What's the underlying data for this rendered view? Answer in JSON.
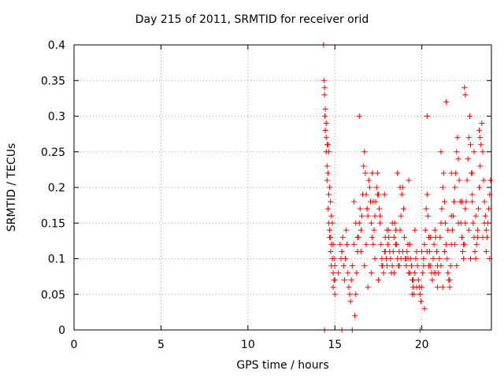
{
  "chart_data": {
    "type": "scatter",
    "title": "Day 215 of 2011, SRMTID for receiver orid",
    "xlabel": "GPS time / hours",
    "ylabel": "SRMTID / TECUs",
    "xlim": [
      0,
      24
    ],
    "ylim": [
      0,
      0.4
    ],
    "xticks": [
      0,
      5,
      10,
      15,
      20
    ],
    "yticks": [
      0,
      0.05,
      0.1,
      0.15,
      0.2,
      0.25,
      0.3,
      0.35,
      0.4
    ],
    "xtick_labels": [
      "0",
      "5",
      "10",
      "15",
      "20"
    ],
    "ytick_labels": [
      "0",
      "0.05",
      "0.1",
      "0.15",
      "0.2",
      "0.25",
      "0.3",
      "0.35",
      "0.4"
    ],
    "grid": true,
    "marker": "plus",
    "color": "#ff0000",
    "x": [
      14.35,
      14.38,
      14.4,
      14.45,
      14.5,
      14.55,
      14.6,
      14.65,
      14.7,
      14.75,
      14.8,
      14.85,
      14.9,
      14.95,
      15.0,
      14.4,
      14.42,
      14.45,
      14.5,
      14.55,
      14.6,
      14.65,
      14.7,
      14.75,
      14.8,
      14.85,
      14.9,
      14.95,
      15.0,
      14.45,
      14.5,
      14.55,
      14.6,
      14.65,
      14.7,
      14.75,
      14.8,
      14.9,
      15.0,
      15.2,
      15.3,
      15.35,
      15.4,
      15.45,
      15.5,
      15.55,
      15.6,
      15.65,
      15.7,
      15.75,
      15.8,
      15.85,
      15.9,
      15.95,
      16.0,
      16.1,
      16.15,
      16.2,
      16.25,
      16.3,
      16.35,
      16.4,
      16.45,
      16.5,
      16.55,
      16.6,
      16.65,
      16.7,
      16.75,
      16.8,
      16.85,
      16.9,
      16.95,
      17.0,
      17.05,
      17.1,
      17.15,
      17.2,
      17.25,
      17.3,
      17.35,
      17.4,
      17.45,
      17.5,
      17.55,
      17.6,
      17.65,
      17.7,
      17.75,
      17.8,
      17.85,
      17.9,
      17.95,
      18.0,
      18.05,
      18.1,
      18.15,
      18.2,
      18.25,
      18.3,
      18.35,
      18.4,
      18.45,
      18.5,
      18.55,
      18.6,
      18.65,
      18.7,
      18.75,
      18.8,
      18.85,
      18.9,
      18.95,
      19.0,
      19.05,
      19.1,
      19.15,
      19.2,
      19.25,
      19.3,
      19.35,
      19.4,
      19.45,
      19.5,
      19.55,
      19.6,
      19.65,
      19.7,
      19.75,
      19.8,
      19.85,
      19.9,
      19.95,
      20.0,
      20.05,
      20.1,
      20.15,
      20.2,
      20.25,
      20.3,
      20.35,
      20.4,
      20.45,
      20.5,
      20.55,
      20.6,
      20.65,
      20.7,
      20.75,
      20.8,
      20.85,
      20.9,
      20.95,
      21.0,
      21.05,
      21.1,
      21.15,
      21.2,
      21.25,
      21.3,
      21.35,
      21.4,
      21.45,
      21.5,
      21.55,
      21.6,
      21.65,
      21.7,
      21.75,
      21.8,
      21.85,
      21.9,
      21.95,
      22.0,
      22.05,
      22.1,
      22.15,
      22.2,
      22.25,
      22.3,
      22.35,
      22.4,
      22.45,
      22.5,
      22.55,
      22.6,
      22.65,
      22.7,
      22.75,
      22.8,
      22.85,
      22.9,
      22.95,
      23.0,
      23.05,
      23.1,
      23.15,
      23.2,
      23.25,
      23.3,
      23.35,
      23.4,
      23.45,
      23.5,
      23.55,
      23.6,
      23.65,
      23.7,
      23.75,
      23.8,
      23.85,
      23.9,
      23.95,
      16.1,
      16.2,
      16.3,
      16.5,
      16.7,
      16.9,
      17.1,
      17.3,
      17.5,
      17.7,
      17.9,
      18.1,
      18.3,
      18.5,
      18.7,
      18.9,
      19.1,
      19.3,
      19.5,
      19.7,
      19.9,
      20.1,
      20.3,
      20.5,
      20.7,
      20.9,
      21.1,
      21.3,
      21.5,
      21.7,
      21.9,
      22.1,
      22.3,
      22.5,
      22.7,
      22.9,
      23.1,
      23.3,
      23.5,
      23.7,
      23.9,
      16.8,
      17.2,
      17.6,
      18.0,
      18.4,
      18.8,
      19.2,
      19.6,
      20.0,
      20.4,
      20.8,
      21.2,
      21.6,
      22.0,
      22.4,
      22.8,
      23.2,
      23.6,
      16.85,
      17.45,
      18.6,
      18.75,
      19.25,
      20.3,
      21.4,
      22.45,
      22.5,
      23.3,
      23.35,
      23.0,
      22.9,
      21.7,
      21.1,
      16.4,
      17.85,
      17.15,
      19.45,
      20.15,
      14.4,
      15.4,
      16.0,
      19.9
    ],
    "y": [
      0.4,
      0.35,
      0.34,
      0.31,
      0.29,
      0.26,
      0.26,
      0.25,
      0.2,
      0.18,
      0.16,
      0.15,
      0.12,
      0.1,
      0.07,
      0.33,
      0.3,
      0.28,
      0.27,
      0.23,
      0.22,
      0.19,
      0.14,
      0.13,
      0.12,
      0.1,
      0.08,
      0.07,
      0.05,
      0.28,
      0.25,
      0.21,
      0.17,
      0.15,
      0.13,
      0.11,
      0.09,
      0.06,
      0.09,
      0.08,
      0.12,
      0.1,
      0.11,
      0.13,
      0.09,
      0.07,
      0.1,
      0.14,
      0.12,
      0.08,
      0.06,
      0.05,
      0.04,
      0.07,
      0.09,
      0.12,
      0.02,
      0.05,
      0.08,
      0.11,
      0.13,
      0.15,
      0.17,
      0.14,
      0.16,
      0.19,
      0.23,
      0.25,
      0.22,
      0.19,
      0.17,
      0.16,
      0.21,
      0.2,
      0.18,
      0.15,
      0.13,
      0.12,
      0.14,
      0.16,
      0.18,
      0.2,
      0.22,
      0.19,
      0.17,
      0.15,
      0.12,
      0.1,
      0.09,
      0.08,
      0.11,
      0.13,
      0.1,
      0.09,
      0.12,
      0.14,
      0.11,
      0.1,
      0.08,
      0.09,
      0.11,
      0.13,
      0.15,
      0.14,
      0.12,
      0.1,
      0.09,
      0.11,
      0.14,
      0.16,
      0.19,
      0.2,
      0.17,
      0.13,
      0.1,
      0.09,
      0.11,
      0.1,
      0.08,
      0.12,
      0.1,
      0.09,
      0.07,
      0.06,
      0.05,
      0.08,
      0.1,
      0.11,
      0.09,
      0.07,
      0.06,
      0.05,
      0.04,
      0.06,
      0.08,
      0.1,
      0.12,
      0.14,
      0.17,
      0.19,
      0.16,
      0.13,
      0.11,
      0.09,
      0.08,
      0.07,
      0.1,
      0.12,
      0.14,
      0.13,
      0.11,
      0.09,
      0.08,
      0.1,
      0.13,
      0.15,
      0.17,
      0.2,
      0.22,
      0.18,
      0.15,
      0.12,
      0.1,
      0.08,
      0.07,
      0.06,
      0.09,
      0.12,
      0.14,
      0.16,
      0.18,
      0.2,
      0.22,
      0.25,
      0.27,
      0.24,
      0.21,
      0.18,
      0.15,
      0.13,
      0.11,
      0.1,
      0.12,
      0.15,
      0.18,
      0.21,
      0.24,
      0.27,
      0.3,
      0.26,
      0.22,
      0.18,
      0.15,
      0.13,
      0.11,
      0.1,
      0.12,
      0.14,
      0.17,
      0.2,
      0.23,
      0.26,
      0.29,
      0.25,
      0.21,
      0.18,
      0.16,
      0.14,
      0.13,
      0.15,
      0.17,
      0.19,
      0.21,
      0.18,
      0.15,
      0.13,
      0.11,
      0.09,
      0.06,
      0.08,
      0.1,
      0.07,
      0.09,
      0.11,
      0.13,
      0.15,
      0.12,
      0.09,
      0.11,
      0.1,
      0.08,
      0.07,
      0.06,
      0.05,
      0.09,
      0.11,
      0.13,
      0.08,
      0.06,
      0.09,
      0.11,
      0.14,
      0.16,
      0.12,
      0.15,
      0.18,
      0.17,
      0.14,
      0.19,
      0.16,
      0.2,
      0.13,
      0.11,
      0.1,
      0.12,
      0.18,
      0.16,
      0.14,
      0.08,
      0.1,
      0.12,
      0.14,
      0.11,
      0.09,
      0.08,
      0.06,
      0.07,
      0.09,
      0.12,
      0.1,
      0.13,
      0.15,
      0.17,
      0.19,
      0.22,
      0.2,
      0.21,
      0.3,
      0.32,
      0.34,
      0.33,
      0.28,
      0.27,
      0.25,
      0.22,
      0.22,
      0.25,
      0.3,
      0.19,
      0.22,
      0.05,
      0.03,
      0.0,
      0.0,
      0.0,
      0.0
    ]
  }
}
